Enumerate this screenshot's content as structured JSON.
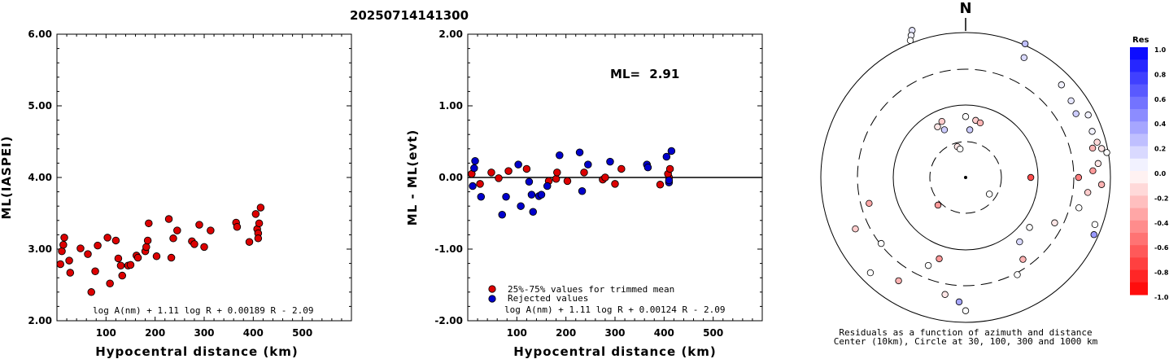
{
  "title": "20250714141300",
  "chart_data": [
    {
      "type": "scatter",
      "xlabel": "Hypocentral distance (km)",
      "ylabel": "ML(IASPEI)",
      "xlim": [
        0,
        600
      ],
      "ylim": [
        2.0,
        6.0
      ],
      "xticks": [
        "100",
        "200",
        "300",
        "400",
        "500"
      ],
      "yticks": [
        "2.00",
        "3.00",
        "4.00",
        "5.00",
        "6.00"
      ],
      "formula": "log A(nm) + 1.11 log R + 0.00189 R - 2.09",
      "marker_color": "#dd0000",
      "points": [
        [
          7,
          2.79
        ],
        [
          10,
          2.97
        ],
        [
          13,
          3.06
        ],
        [
          15,
          3.16
        ],
        [
          25,
          2.84
        ],
        [
          27,
          2.67
        ],
        [
          48,
          3.01
        ],
        [
          63,
          2.93
        ],
        [
          70,
          2.4
        ],
        [
          78,
          2.69
        ],
        [
          83,
          3.05
        ],
        [
          103,
          3.16
        ],
        [
          108,
          2.52
        ],
        [
          120,
          3.12
        ],
        [
          125,
          2.87
        ],
        [
          130,
          2.77
        ],
        [
          133,
          2.63
        ],
        [
          145,
          2.77
        ],
        [
          150,
          2.78
        ],
        [
          162,
          2.91
        ],
        [
          165,
          2.88
        ],
        [
          180,
          2.97
        ],
        [
          182,
          3.03
        ],
        [
          185,
          3.12
        ],
        [
          187,
          3.36
        ],
        [
          203,
          2.9
        ],
        [
          228,
          3.42
        ],
        [
          233,
          2.88
        ],
        [
          237,
          3.15
        ],
        [
          245,
          3.26
        ],
        [
          275,
          3.11
        ],
        [
          280,
          3.07
        ],
        [
          290,
          3.34
        ],
        [
          300,
          3.03
        ],
        [
          313,
          3.26
        ],
        [
          365,
          3.37
        ],
        [
          367,
          3.31
        ],
        [
          392,
          3.1
        ],
        [
          405,
          3.49
        ],
        [
          408,
          3.28
        ],
        [
          410,
          3.22
        ],
        [
          410,
          3.15
        ],
        [
          412,
          3.36
        ],
        [
          415,
          3.58
        ]
      ]
    },
    {
      "type": "scatter",
      "xlabel": "Hypocentral distance (km)",
      "ylabel": "ML - ML(evt)",
      "xlim": [
        0,
        600
      ],
      "ylim": [
        -2.0,
        2.0
      ],
      "xticks": [
        "100",
        "200",
        "300",
        "400",
        "500"
      ],
      "yticks": [
        "-2.00",
        "-1.00",
        "0.00",
        "1.00",
        "2.00"
      ],
      "ml_label": "ML=",
      "ml_value": "2.91",
      "formula": "log A(nm) + 1.11 log R + 0.00124 R - 2.09",
      "legend": [
        {
          "label": "25%-75% values for trimmed mean",
          "color": "#dd0000"
        },
        {
          "label": "Rejected values",
          "color": "#0000cc"
        }
      ],
      "series": [
        {
          "name": "25%-75% values for trimmed mean",
          "color": "#dd0000",
          "points": [
            [
              8,
              0.05
            ],
            [
              25,
              -0.09
            ],
            [
              48,
              0.07
            ],
            [
              63,
              -0.01
            ],
            [
              83,
              0.09
            ],
            [
              120,
              0.12
            ],
            [
              165,
              -0.05
            ],
            [
              180,
              -0.02
            ],
            [
              182,
              0.07
            ],
            [
              203,
              -0.05
            ],
            [
              237,
              0.07
            ],
            [
              275,
              -0.03
            ],
            [
              280,
              0.0
            ],
            [
              300,
              -0.09
            ],
            [
              313,
              0.12
            ],
            [
              392,
              -0.1
            ],
            [
              410,
              0.0
            ],
            [
              408,
              0.05
            ],
            [
              412,
              0.12
            ]
          ]
        },
        {
          "name": "Rejected values",
          "color": "#0000cc",
          "points": [
            [
              10,
              -0.12
            ],
            [
              13,
              0.13
            ],
            [
              15,
              0.23
            ],
            [
              27,
              -0.27
            ],
            [
              70,
              -0.52
            ],
            [
              78,
              -0.27
            ],
            [
              103,
              0.18
            ],
            [
              108,
              -0.4
            ],
            [
              125,
              -0.06
            ],
            [
              130,
              -0.24
            ],
            [
              133,
              -0.48
            ],
            [
              145,
              -0.26
            ],
            [
              150,
              -0.24
            ],
            [
              162,
              -0.12
            ],
            [
              187,
              0.31
            ],
            [
              228,
              0.35
            ],
            [
              233,
              -0.19
            ],
            [
              245,
              0.18
            ],
            [
              290,
              0.22
            ],
            [
              365,
              0.18
            ],
            [
              367,
              0.14
            ],
            [
              405,
              0.29
            ],
            [
              415,
              0.37
            ],
            [
              410,
              -0.07
            ],
            [
              410,
              -0.04
            ]
          ]
        }
      ]
    },
    {
      "type": "polar-scatter",
      "north_label": "N",
      "caption_line1": "Residuals as a function of azimuth and distance",
      "caption_line2": "Center (10km), Circle at 30, 100, 300 and 1000 km",
      "rings_km": [
        30,
        100,
        300,
        1000
      ],
      "colorbar_title": "Res",
      "colorbar_ticks": [
        "1.0",
        "0.8",
        "0.6",
        "0.4",
        "0.2",
        "0.0",
        "-0.2",
        "-0.4",
        "-0.6",
        "-0.8",
        "-1.0"
      ],
      "points_az_dist_res": [
        [
          340,
          1.08,
          0.1
        ],
        [
          339,
          1.05,
          0.05
        ],
        [
          338,
          1.02,
          0.0
        ],
        [
          24,
          1.01,
          0.25
        ],
        [
          26,
          0.92,
          0.15
        ],
        [
          46,
          0.92,
          0.05
        ],
        [
          54,
          0.9,
          0.1
        ],
        [
          60,
          0.88,
          0.2
        ],
        [
          63,
          0.95,
          0.05
        ],
        [
          70,
          0.93,
          0.05
        ],
        [
          75,
          0.94,
          -0.15
        ],
        [
          77,
          0.9,
          -0.3
        ],
        [
          78,
          0.96,
          -0.1
        ],
        [
          80,
          0.99,
          0.0
        ],
        [
          84,
          0.92,
          -0.1
        ],
        [
          87,
          0.88,
          -0.4
        ],
        [
          90,
          0.78,
          -0.5
        ],
        [
          93,
          0.94,
          -0.3
        ],
        [
          97,
          0.85,
          -0.2
        ],
        [
          105,
          0.81,
          0.0
        ],
        [
          110,
          0.95,
          0.0
        ],
        [
          114,
          0.97,
          0.4
        ],
        [
          117,
          0.69,
          -0.1
        ],
        [
          128,
          0.56,
          0.0
        ],
        [
          140,
          0.58,
          0.15
        ],
        [
          145,
          0.69,
          -0.3
        ],
        [
          152,
          0.76,
          0.0
        ],
        [
          180,
          0.92,
          0.0
        ],
        [
          183,
          0.86,
          0.35
        ],
        [
          190,
          0.82,
          -0.1
        ],
        [
          198,
          0.59,
          -0.4
        ],
        [
          203,
          0.66,
          0.0
        ],
        [
          213,
          0.85,
          -0.3
        ],
        [
          225,
          0.93,
          0.0
        ],
        [
          232,
          0.74,
          0.0
        ],
        [
          245,
          0.84,
          -0.2
        ],
        [
          255,
          0.69,
          -0.35
        ],
        [
          90,
          0.45,
          -0.7
        ],
        [
          0,
          0.42,
          0.0
        ],
        [
          337,
          0.42,
          -0.2
        ],
        [
          331,
          0.4,
          -0.1
        ],
        [
          10,
          0.4,
          -0.2
        ],
        [
          15,
          0.39,
          -0.3
        ],
        [
          345,
          0.22,
          -0.1
        ],
        [
          349,
          0.2,
          0.0
        ],
        [
          5,
          0.33,
          0.2
        ],
        [
          336,
          0.36,
          0.2
        ],
        [
          225,
          0.27,
          -0.4
        ],
        [
          125,
          0.2,
          0.0
        ]
      ]
    }
  ]
}
